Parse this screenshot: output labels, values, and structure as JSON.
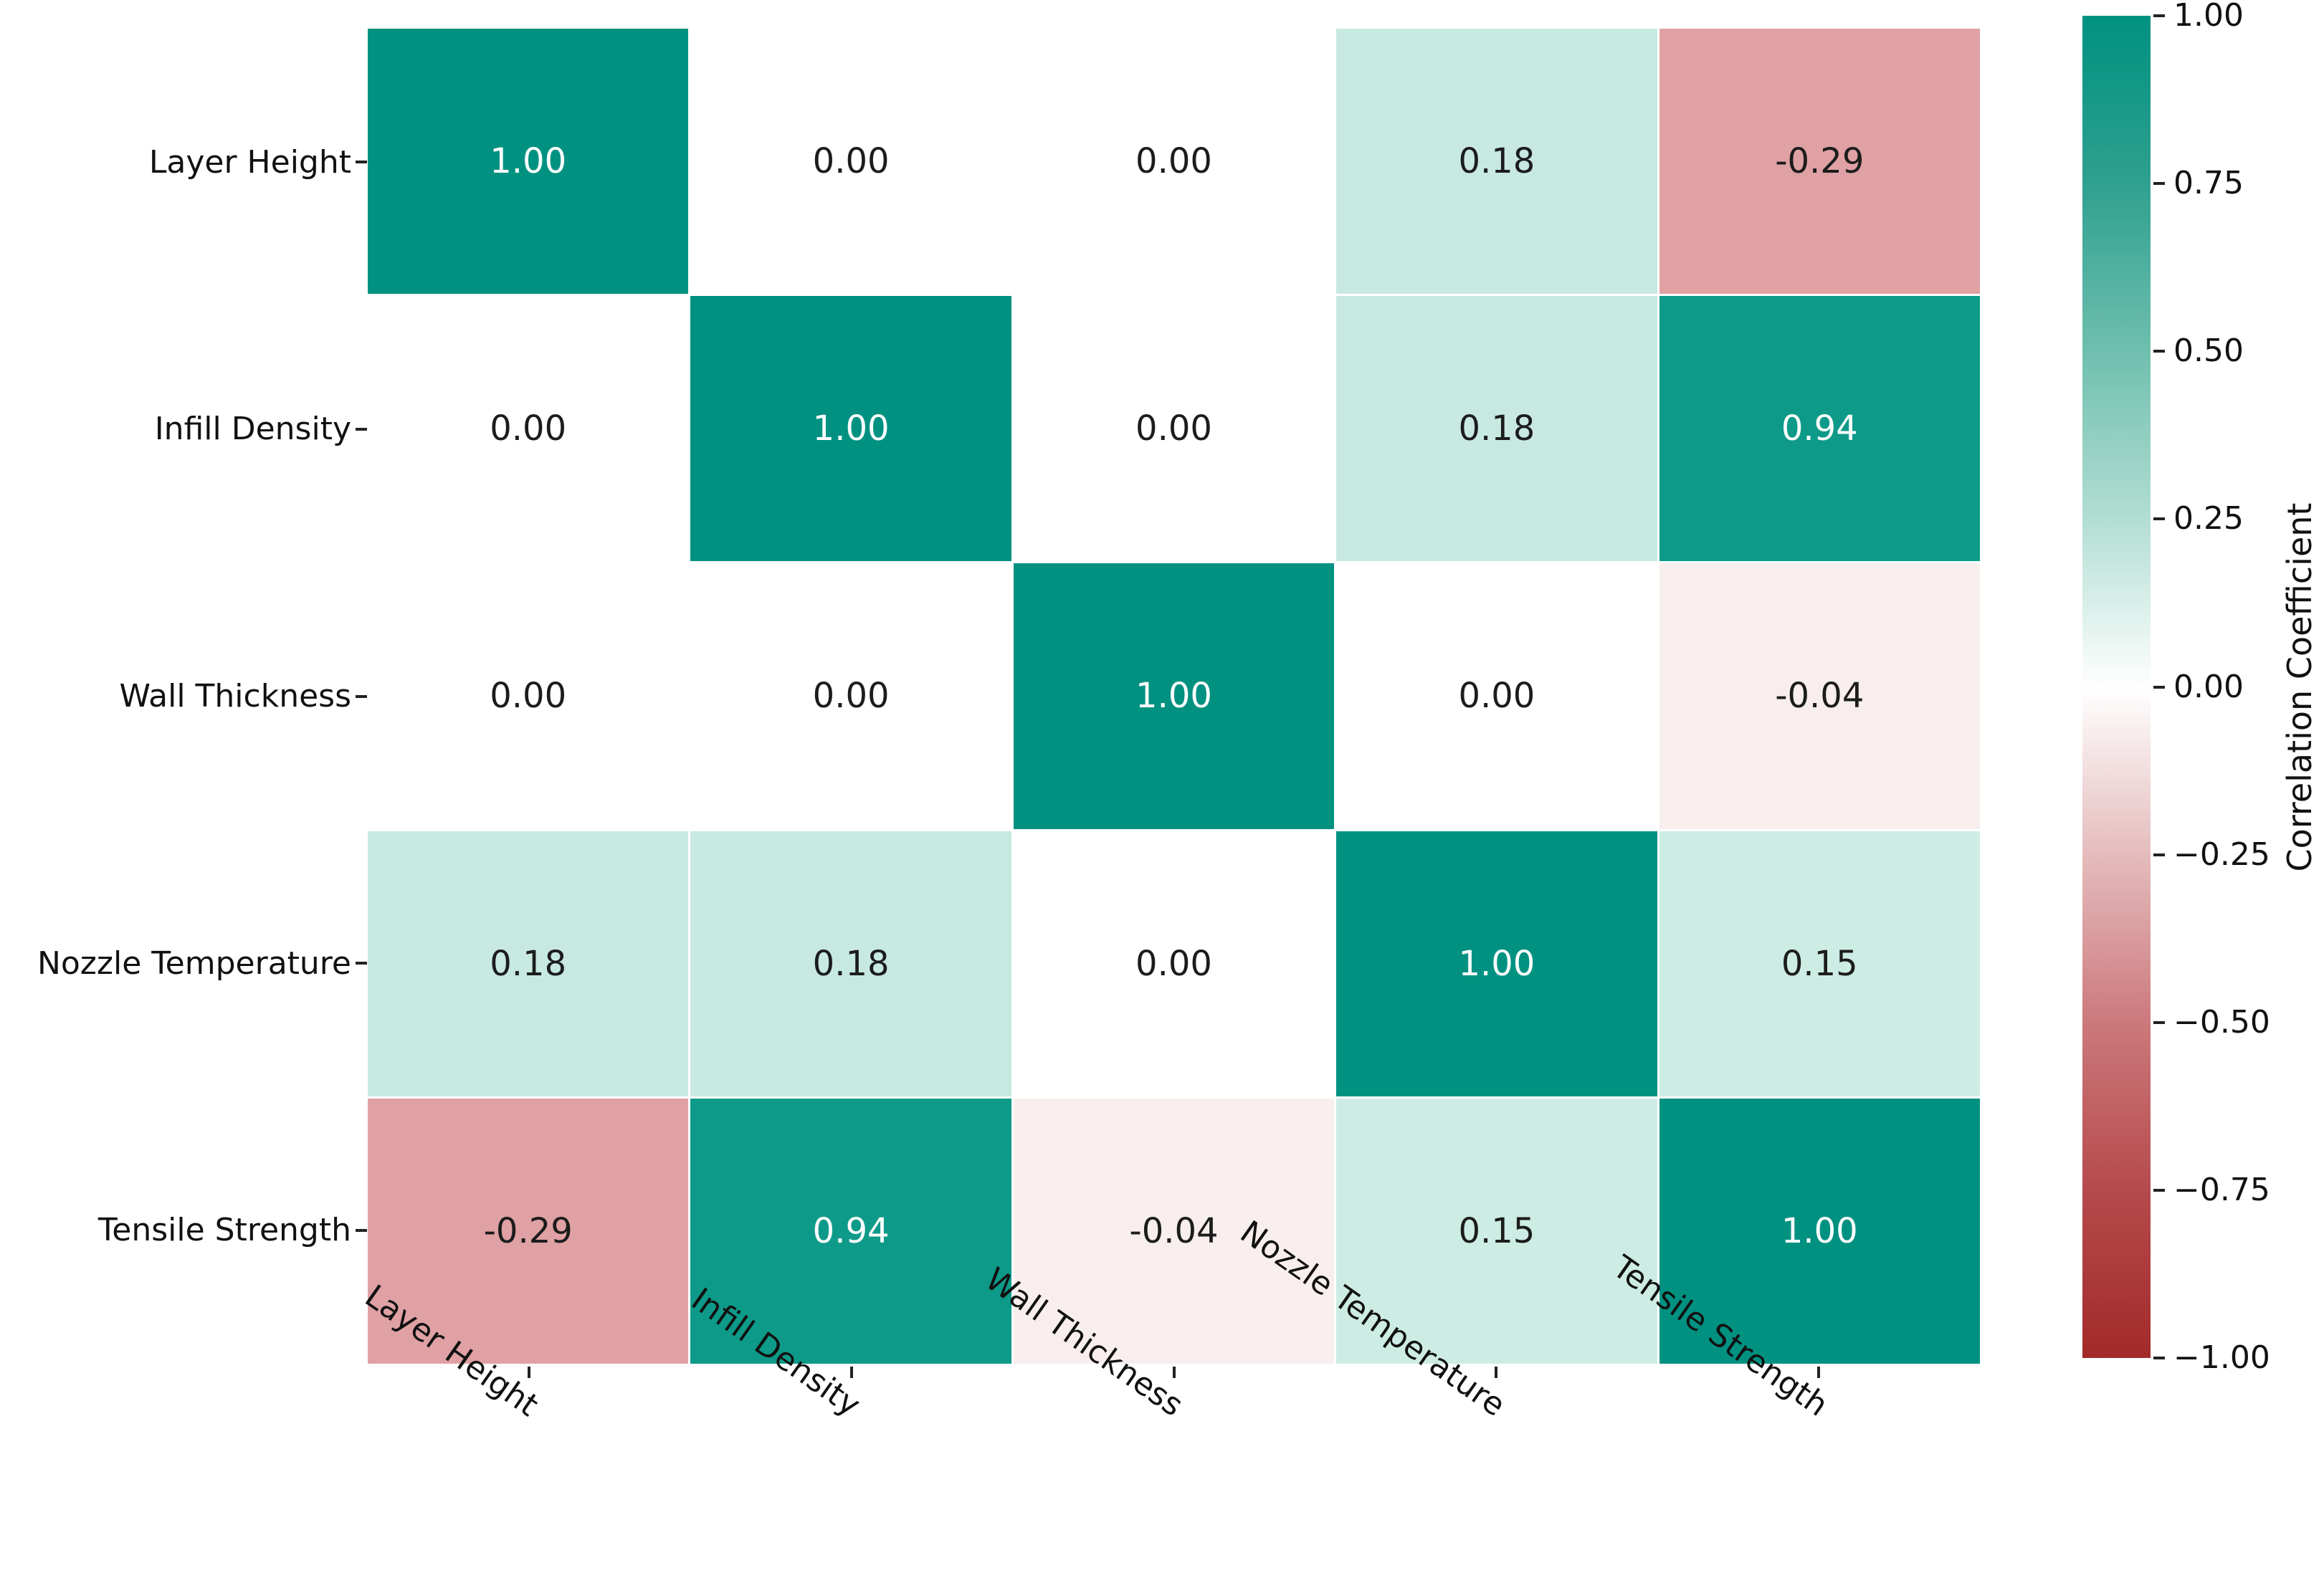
{
  "chart_data": {
    "type": "heatmap",
    "title": "",
    "categories": [
      "Layer Height",
      "Infill Density",
      "Wall Thickness",
      "Nozzle Temperature",
      "Tensile Strength"
    ],
    "matrix": [
      [
        1.0,
        0.0,
        0.0,
        0.18,
        -0.29
      ],
      [
        0.0,
        1.0,
        0.0,
        0.18,
        0.94
      ],
      [
        0.0,
        0.0,
        1.0,
        0.0,
        -0.04
      ],
      [
        0.18,
        0.18,
        0.0,
        1.0,
        0.15
      ],
      [
        -0.29,
        0.94,
        -0.04,
        0.15,
        1.0
      ]
    ],
    "value_colors": {
      "1.00": "#009181",
      "0.94": "#0e9a89",
      "0.18": "#c7e9e1",
      "0.15": "#cdece4",
      "0.00": "#ffffff",
      "-0.04": "#f8eeee",
      "-0.29": "#dfa1a3"
    },
    "annot_text_dark": "#1c1c1c",
    "annot_text_light": "#ffffff",
    "light_text_threshold": 0.9,
    "gridline_color": "#ffffff",
    "colorbar": {
      "label": "Correlation Coefficient",
      "vmin": -1.0,
      "vmax": 1.0,
      "tick_labels": [
        "1.00",
        "0.75",
        "0.50",
        "0.25",
        "0.00",
        "−0.25",
        "−0.50",
        "−0.75",
        "−1.00"
      ],
      "gradient": [
        {
          "pos": 0,
          "color": "#009180"
        },
        {
          "pos": 12.5,
          "color": "#2fa090"
        },
        {
          "pos": 25,
          "color": "#6fbfae"
        },
        {
          "pos": 37.5,
          "color": "#b2ded3"
        },
        {
          "pos": 50,
          "color": "#ffffff"
        },
        {
          "pos": 62.5,
          "color": "#e5bcbd"
        },
        {
          "pos": 75,
          "color": "#cc797c"
        },
        {
          "pos": 87.5,
          "color": "#b54a4c"
        },
        {
          "pos": 100,
          "color": "#a32a2a"
        }
      ]
    },
    "layout_hints": {
      "legend_position": "right-colorbar",
      "grid": false,
      "x_tick_rotation_deg": 35
    }
  }
}
